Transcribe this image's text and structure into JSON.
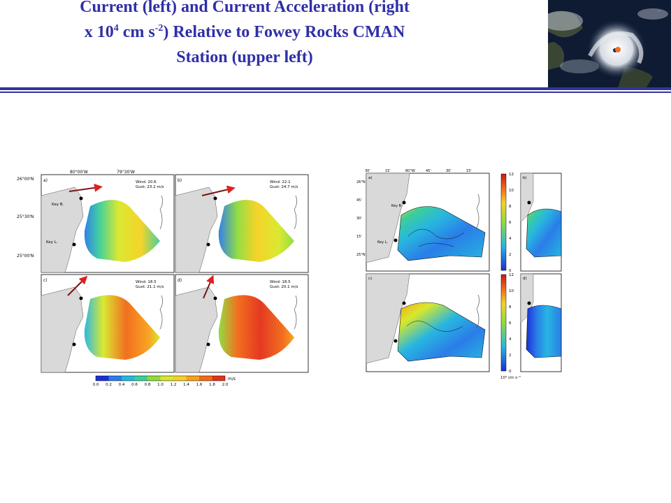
{
  "slide": {
    "title_line1": "Current (left) and Current Acceleration (right",
    "title_line2_prefix": "x 10",
    "title_line2_exp1": "4",
    "title_line2_mid": " cm s",
    "title_line2_exp2": "-2",
    "title_line2_suffix": ") Relative to Fowey Rocks CMAN",
    "title_line3": "Station (upper left)"
  },
  "left_figure": {
    "lon_labels": [
      "80°00'W",
      "79°30'W"
    ],
    "lat_labels": [
      "26°00'N",
      "25°30'N",
      "25°00'N"
    ],
    "place_labels": [
      "Key B.",
      "Key L."
    ],
    "panels": [
      {
        "letter": "a)",
        "wind": "Wind: 20.6",
        "gust": "Gust: 23.2 m/s"
      },
      {
        "letter": "b)",
        "wind": "Wind: 22.1",
        "gust": "Gust: 24.7 m/s"
      },
      {
        "letter": "c)",
        "wind": "Wind: 18.5",
        "gust": "Gust: 21.1 m/s"
      },
      {
        "letter": "d)",
        "wind": "Wind: 18.5",
        "gust": "Gust: 20.1 m/s"
      }
    ],
    "colorbar": {
      "ticks": [
        "0.0",
        "0.2",
        "0.4",
        "0.6",
        "0.8",
        "1.0",
        "1.2",
        "1.4",
        "1.6",
        "1.8",
        "2.0"
      ],
      "unit": "m/s",
      "colors": [
        "#1a2fd6",
        "#2a7de8",
        "#27b6e0",
        "#3ccf9a",
        "#8fdc3c",
        "#d8e82a",
        "#f5d222",
        "#f7a11c",
        "#f26a17",
        "#e3321a"
      ]
    }
  },
  "right_figure": {
    "lon_labels": [
      "30'",
      "15'",
      "80°W",
      "45'",
      "30'",
      "15'"
    ],
    "lat_labels": [
      "26°N",
      "45'",
      "30'",
      "15'",
      "25°N"
    ],
    "place_labels": [
      "Key B.",
      "Key L."
    ],
    "panel_letters": [
      "a)",
      "b)",
      "c)",
      "d)"
    ],
    "colorbar": {
      "ticks": [
        "12",
        "10",
        "8",
        "6",
        "4",
        "2",
        "0"
      ],
      "unit": "10⁴ cm s⁻²"
    }
  },
  "satellite_image": {
    "icon": "hurricane-satellite-image"
  }
}
